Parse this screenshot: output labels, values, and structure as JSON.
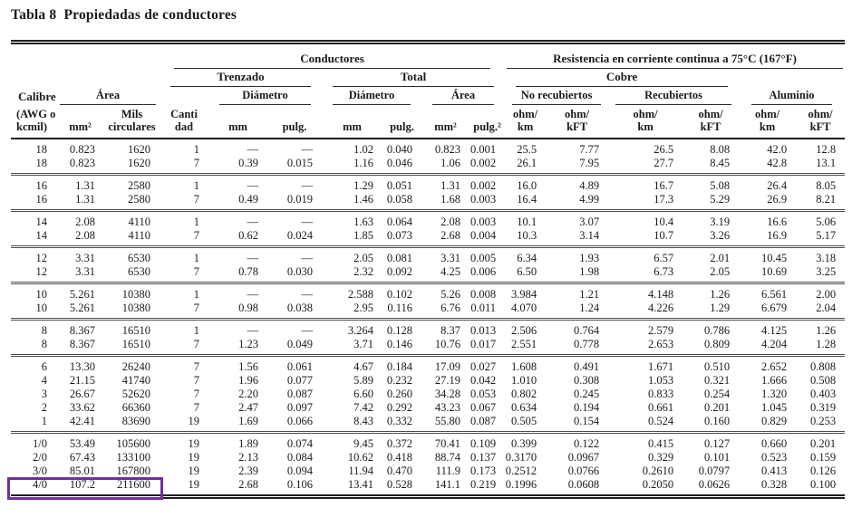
{
  "page": {
    "title": "Tabla 8  Propiedadas de conductores"
  },
  "header": {
    "conductores": "Conductores",
    "resistencia": "Resistencia en corriente continua a 75°C (167°F)",
    "trenzado": "Trenzado",
    "total": "Total",
    "cobre": "Cobre",
    "calibre": "Calibre",
    "calibre_sub": "(AWG o\nkcmil)",
    "area": "Área",
    "diametro_trenzado": "Diámetro",
    "diametro_total": "Diámetro",
    "area_total": "Área",
    "no_recubiertos": "No recubiertos",
    "recubiertos": "Recubiertos",
    "aluminio": "Aluminio",
    "units": {
      "mm2": "mm²",
      "mils": "Mils\ncirculares",
      "cantidad": "Canti\ndad",
      "mm": "mm",
      "pulg": "pulg.",
      "pulg2": "pulg.²",
      "ohm_km": "ohm/\nkm",
      "ohm_kft": "ohm/\nkFT"
    }
  },
  "table": {
    "column_keys": [
      "calibre",
      "area-mm2",
      "area-mils",
      "cantidad",
      "trenzado-diam-mm",
      "trenzado-diam-pulg",
      "total-diam-mm",
      "total-diam-pulg",
      "total-area-mm2",
      "total-area-pulg2",
      "cobre-no-recub-ohm-km",
      "cobre-no-recub-ohm-kft",
      "cobre-recub-ohm-km",
      "cobre-recub-ohm-kft",
      "aluminio-ohm-km",
      "aluminio-ohm-kft"
    ],
    "groups": [
      {
        "rows": [
          [
            "18",
            "0.823",
            "1620",
            "1",
            "—",
            "—",
            "1.02",
            "0.040",
            "0.823",
            "0.001",
            "25.5",
            "7.77",
            "26.5",
            "8.08",
            "42.0",
            "12.8"
          ],
          [
            "18",
            "0.823",
            "1620",
            "7",
            "0.39",
            "0.015",
            "1.16",
            "0.046",
            "1.06",
            "0.002",
            "26.1",
            "7.95",
            "27.7",
            "8.45",
            "42.8",
            "13.1"
          ]
        ]
      },
      {
        "rows": [
          [
            "16",
            "1.31",
            "2580",
            "1",
            "—",
            "—",
            "1.29",
            "0.051",
            "1.31",
            "0.002",
            "16.0",
            "4.89",
            "16.7",
            "5.08",
            "26.4",
            "8.05"
          ],
          [
            "16",
            "1.31",
            "2580",
            "7",
            "0.49",
            "0.019",
            "1.46",
            "0.058",
            "1.68",
            "0.003",
            "16.4",
            "4.99",
            "17.3",
            "5.29",
            "26.9",
            "8.21"
          ]
        ]
      },
      {
        "rows": [
          [
            "14",
            "2.08",
            "4110",
            "1",
            "—",
            "—",
            "1.63",
            "0.064",
            "2.08",
            "0.003",
            "10.1",
            "3.07",
            "10.4",
            "3.19",
            "16.6",
            "5.06"
          ],
          [
            "14",
            "2.08",
            "4110",
            "7",
            "0.62",
            "0.024",
            "1.85",
            "0.073",
            "2.68",
            "0.004",
            "10.3",
            "3.14",
            "10.7",
            "3.26",
            "16.9",
            "5.17"
          ]
        ]
      },
      {
        "rows": [
          [
            "12",
            "3.31",
            "6530",
            "1",
            "—",
            "—",
            "2.05",
            "0.081",
            "3.31",
            "0.005",
            "6.34",
            "1.93",
            "6.57",
            "2.01",
            "10.45",
            "3.18"
          ],
          [
            "12",
            "3.31",
            "6530",
            "7",
            "0.78",
            "0.030",
            "2.32",
            "0.092",
            "4.25",
            "0.006",
            "6.50",
            "1.98",
            "6.73",
            "2.05",
            "10.69",
            "3.25"
          ]
        ]
      },
      {
        "rows": [
          [
            "10",
            "5.261",
            "10380",
            "1",
            "—",
            "—",
            "2.588",
            "0.102",
            "5.26",
            "0.008",
            "3.984",
            "1.21",
            "4.148",
            "1.26",
            "6.561",
            "2.00"
          ],
          [
            "10",
            "5.261",
            "10380",
            "7",
            "0.98",
            "0.038",
            "2.95",
            "0.116",
            "6.76",
            "0.011",
            "4.070",
            "1.24",
            "4.226",
            "1.29",
            "6.679",
            "2.04"
          ]
        ]
      },
      {
        "rows": [
          [
            "8",
            "8.367",
            "16510",
            "1",
            "—",
            "—",
            "3.264",
            "0.128",
            "8.37",
            "0.013",
            "2.506",
            "0.764",
            "2.579",
            "0.786",
            "4.125",
            "1.26"
          ],
          [
            "8",
            "8.367",
            "16510",
            "7",
            "1.23",
            "0.049",
            "3.71",
            "0.146",
            "10.76",
            "0.017",
            "2.551",
            "0.778",
            "2.653",
            "0.809",
            "4.204",
            "1.28"
          ]
        ]
      },
      {
        "rows": [
          [
            "6",
            "13.30",
            "26240",
            "7",
            "1.56",
            "0.061",
            "4.67",
            "0.184",
            "17.09",
            "0.027",
            "1.608",
            "0.491",
            "1.671",
            "0.510",
            "2.652",
            "0.808"
          ],
          [
            "4",
            "21.15",
            "41740",
            "7",
            "1.96",
            "0.077",
            "5.89",
            "0.232",
            "27.19",
            "0.042",
            "1.010",
            "0.308",
            "1.053",
            "0.321",
            "1.666",
            "0.508"
          ],
          [
            "3",
            "26.67",
            "52620",
            "7",
            "2.20",
            "0.087",
            "6.60",
            "0.260",
            "34.28",
            "0.053",
            "0.802",
            "0.245",
            "0.833",
            "0.254",
            "1.320",
            "0.403"
          ],
          [
            "2",
            "33.62",
            "66360",
            "7",
            "2.47",
            "0.097",
            "7.42",
            "0.292",
            "43.23",
            "0.067",
            "0.634",
            "0.194",
            "0.661",
            "0.201",
            "1.045",
            "0.319"
          ],
          [
            "1",
            "42.41",
            "83690",
            "19",
            "1.69",
            "0.066",
            "8.43",
            "0.332",
            "55.80",
            "0.087",
            "0.505",
            "0.154",
            "0.524",
            "0.160",
            "0.829",
            "0.253"
          ]
        ]
      },
      {
        "rows": [
          [
            "1/0",
            "53.49",
            "105600",
            "19",
            "1.89",
            "0.074",
            "9.45",
            "0.372",
            "70.41",
            "0.109",
            "0.399",
            "0.122",
            "0.415",
            "0.127",
            "0.660",
            "0.201"
          ],
          [
            "2/0",
            "67.43",
            "133100",
            "19",
            "2.13",
            "0.084",
            "10.62",
            "0.418",
            "88.74",
            "0.137",
            "0.3170",
            "0.0967",
            "0.329",
            "0.101",
            "0.523",
            "0.159"
          ],
          [
            "3/0",
            "85.01",
            "167800",
            "19",
            "2.39",
            "0.094",
            "11.94",
            "0.470",
            "111.9",
            "0.173",
            "0.2512",
            "0.0766",
            "0.2610",
            "0.0797",
            "0.413",
            "0.126"
          ],
          [
            "4/0",
            "107.2",
            "211600",
            "19",
            "2.68",
            "0.106",
            "13.41",
            "0.528",
            "141.1",
            "0.219",
            "0.1996",
            "0.0608",
            "0.2050",
            "0.0626",
            "0.328",
            "0.100"
          ]
        ]
      }
    ]
  },
  "highlight": {
    "row": "4/0",
    "columns_covered": 3,
    "color": "#7030a0"
  }
}
